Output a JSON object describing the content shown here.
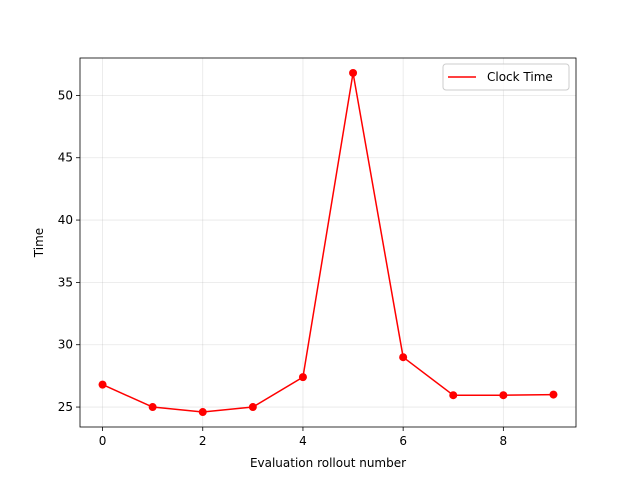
{
  "chart_data": {
    "type": "line",
    "title": "",
    "xlabel": "Evaluation rollout number",
    "ylabel": "Time",
    "xlim": [
      -0.45,
      9.45
    ],
    "ylim": [
      23.4,
      53.0
    ],
    "x_ticks": [
      0,
      2,
      4,
      6,
      8
    ],
    "y_ticks": [
      25,
      30,
      35,
      40,
      45,
      50
    ],
    "grid": true,
    "legend_position": "upper right",
    "series": [
      {
        "name": "Clock Time",
        "color": "#ff0000",
        "marker": "circle",
        "x": [
          0,
          1,
          2,
          3,
          4,
          5,
          6,
          7,
          8,
          9
        ],
        "y": [
          26.8,
          25.0,
          24.6,
          25.0,
          27.4,
          51.8,
          29.0,
          25.95,
          25.95,
          26.0
        ]
      }
    ]
  }
}
